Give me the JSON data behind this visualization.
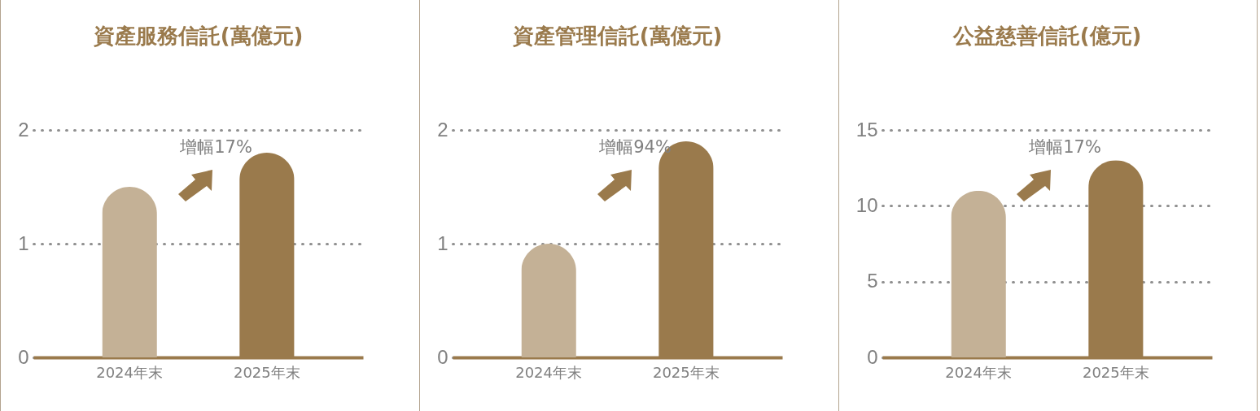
{
  "chart_data": [
    {
      "type": "bar",
      "title": "資產服務信託(萬億元)",
      "categories": [
        "2024年末",
        "2025年末"
      ],
      "values": [
        1.5,
        1.8
      ],
      "colors": [
        "#c4b196",
        "#9a7a4c"
      ],
      "ylim": [
        0,
        2
      ],
      "yticks": [
        0,
        1,
        2
      ],
      "grid": "y",
      "annotations": [
        "增幅17%"
      ]
    },
    {
      "type": "bar",
      "title": "資產管理信託(萬億元)",
      "categories": [
        "2024年末",
        "2025年末"
      ],
      "values": [
        1.0,
        1.9
      ],
      "colors": [
        "#c4b196",
        "#9a7a4c"
      ],
      "ylim": [
        0,
        2
      ],
      "yticks": [
        0,
        1,
        2
      ],
      "grid": "y",
      "annotations": [
        "增幅94%"
      ]
    },
    {
      "type": "bar",
      "title": "公益慈善信託(億元)",
      "categories": [
        "2024年末",
        "2025年末"
      ],
      "values": [
        11,
        13
      ],
      "colors": [
        "#c4b196",
        "#9a7a4c"
      ],
      "ylim": [
        0,
        15
      ],
      "yticks": [
        0,
        5,
        10,
        15
      ],
      "grid": "y",
      "annotations": [
        "增幅17%"
      ]
    }
  ]
}
